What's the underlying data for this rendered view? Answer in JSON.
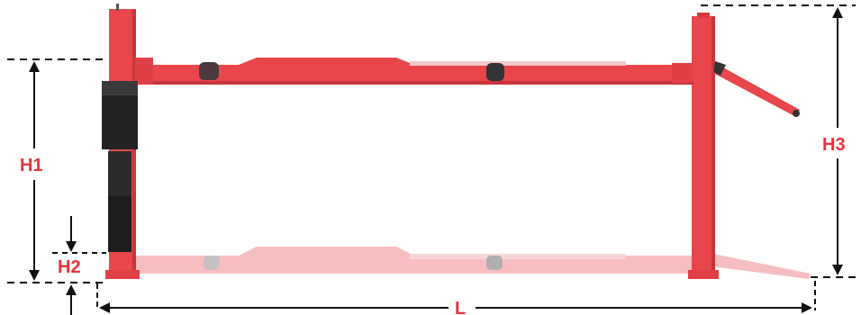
{
  "labels": {
    "h1": "H1",
    "h2": "H2",
    "h3": "H3",
    "l": "L"
  },
  "colors": {
    "lift_red": "#e8464b",
    "lift_red_dark": "#c8353a",
    "ghost_red": "#f3aeb0",
    "label_red": "#e8333b",
    "line_black": "#111111",
    "power_unit": "#232323"
  }
}
